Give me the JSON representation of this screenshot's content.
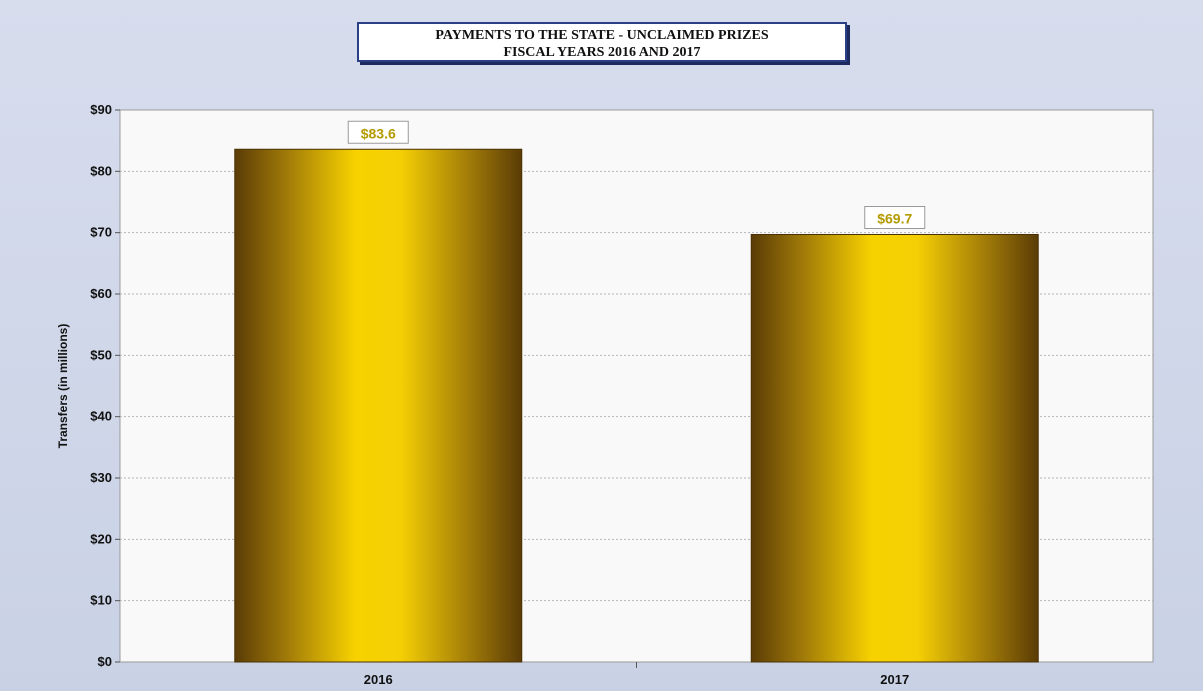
{
  "chart_data": {
    "type": "bar",
    "title": "PAYMENTS TO THE STATE  - UNCLAIMED PRIZES",
    "subtitle": "FISCAL YEARS 2016 AND 2017",
    "categories": [
      "2016",
      "2017"
    ],
    "values": [
      83.6,
      69.7
    ],
    "data_labels": [
      "$83.6",
      "$69.7"
    ],
    "ylabel": "Transfers (in millions)",
    "xlabel": "",
    "ylim": [
      0,
      90
    ],
    "yticks": [
      0,
      10,
      20,
      30,
      40,
      50,
      60,
      70,
      80,
      90
    ],
    "ytick_labels": [
      "$0",
      "$10",
      "$20",
      "$30",
      "$40",
      "$50",
      "$60",
      "$70",
      "$80",
      "$90"
    ],
    "grid": true,
    "legend": "none",
    "colors": {
      "bar_center": "#f7d200",
      "bar_edge": "#5a3c06",
      "label_text": "#b39a00",
      "plot_bg": "#f9f9f9",
      "page_bg": "#cfd6e8"
    }
  }
}
